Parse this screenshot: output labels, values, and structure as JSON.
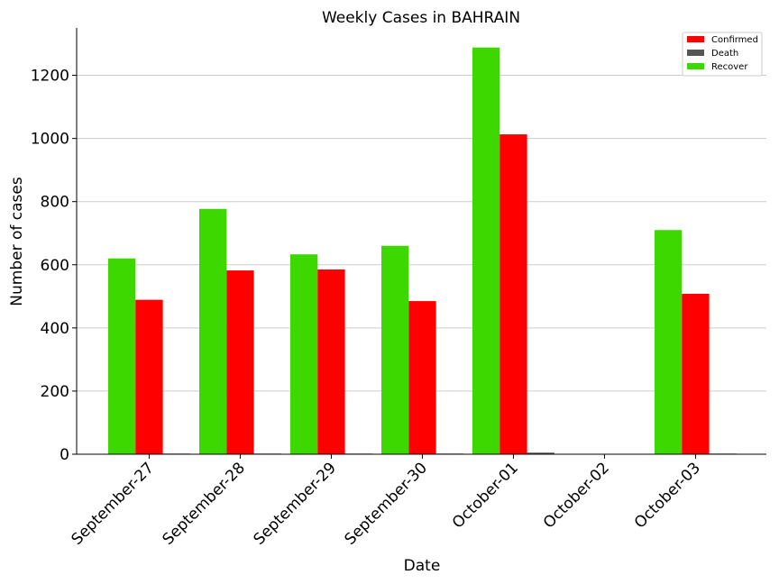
{
  "chart_data": {
    "type": "bar",
    "title": "Weekly Cases in BAHRAIN",
    "xlabel": "Date",
    "ylabel": "Number of cases",
    "ylim": [
      0,
      1350
    ],
    "yticks": [
      0,
      200,
      400,
      600,
      800,
      1000,
      1200
    ],
    "grid": "horizontal",
    "legend_position": "top-right",
    "categories": [
      "September-27",
      "September-28",
      "September-29",
      "September-30",
      "October-01",
      "October-02",
      "October-03"
    ],
    "series": [
      {
        "name": "Recover",
        "color": "#3dd800",
        "values": [
          620,
          777,
          633,
          660,
          1288,
          0,
          710
        ]
      },
      {
        "name": "Confirmed",
        "color": "#ff0000",
        "values": [
          489,
          582,
          585,
          485,
          1013,
          0,
          508
        ]
      },
      {
        "name": "Death",
        "color": "#555555",
        "values": [
          2,
          2,
          2,
          2,
          5,
          1,
          2
        ]
      }
    ],
    "legend_order": [
      "Confirmed",
      "Death",
      "Recover"
    ]
  }
}
